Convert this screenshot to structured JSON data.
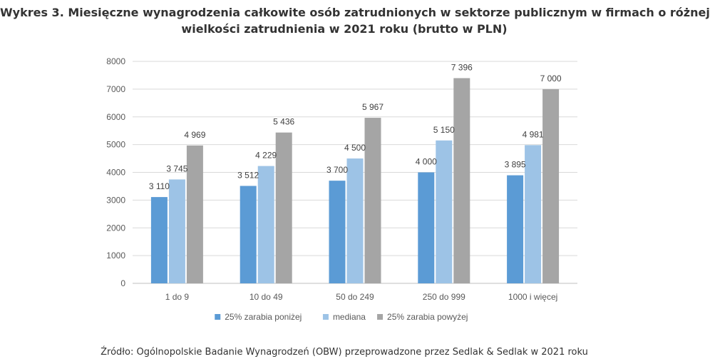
{
  "title_line1": "Wykres 3. Miesięczne wynagrodzenia całkowite osób zatrudnionych w sektorze publicznym w firmach o różnej",
  "title_line2": "wielkości zatrudnienia w 2021 roku (brutto w PLN)",
  "source": "Źródło: Ogólnopolskie Badanie Wynagrodzeń (OBW) przeprowadzone przez Sedlak & Sedlak w 2021 roku",
  "chart_data": {
    "type": "bar",
    "title": "Wykres 3. Miesięczne wynagrodzenia całkowite osób zatrudnionych w sektorze publicznym w firmach o różnej wielkości zatrudnienia w 2021 roku (brutto w PLN)",
    "xlabel": "",
    "ylabel": "",
    "ylim": [
      0,
      8000
    ],
    "yticks": [
      0,
      1000,
      2000,
      3000,
      4000,
      5000,
      6000,
      7000,
      8000
    ],
    "grid": true,
    "legend_position": "bottom",
    "categories": [
      "1 do 9",
      "10 do 49",
      "50 do 249",
      "250 do 999",
      "1000 i więcej"
    ],
    "series": [
      {
        "name": "25% zarabia poniżej",
        "color": "#5B9BD5",
        "values": [
          3110,
          3512,
          3700,
          4000,
          3895
        ],
        "labels": [
          "3 110",
          "3 512",
          "3 700",
          "4 000",
          "3 895"
        ]
      },
      {
        "name": "mediana",
        "color": "#9DC3E6",
        "values": [
          3745,
          4229,
          4500,
          5150,
          4981
        ],
        "labels": [
          "3 745",
          "4 229",
          "4 500",
          "5 150",
          "4 981"
        ]
      },
      {
        "name": "25% zarabia powyżej",
        "color": "#A5A5A5",
        "values": [
          4969,
          5436,
          5967,
          7396,
          7000
        ],
        "labels": [
          "4 969",
          "5 436",
          "5 967",
          "7 396",
          "7 000"
        ]
      }
    ]
  }
}
